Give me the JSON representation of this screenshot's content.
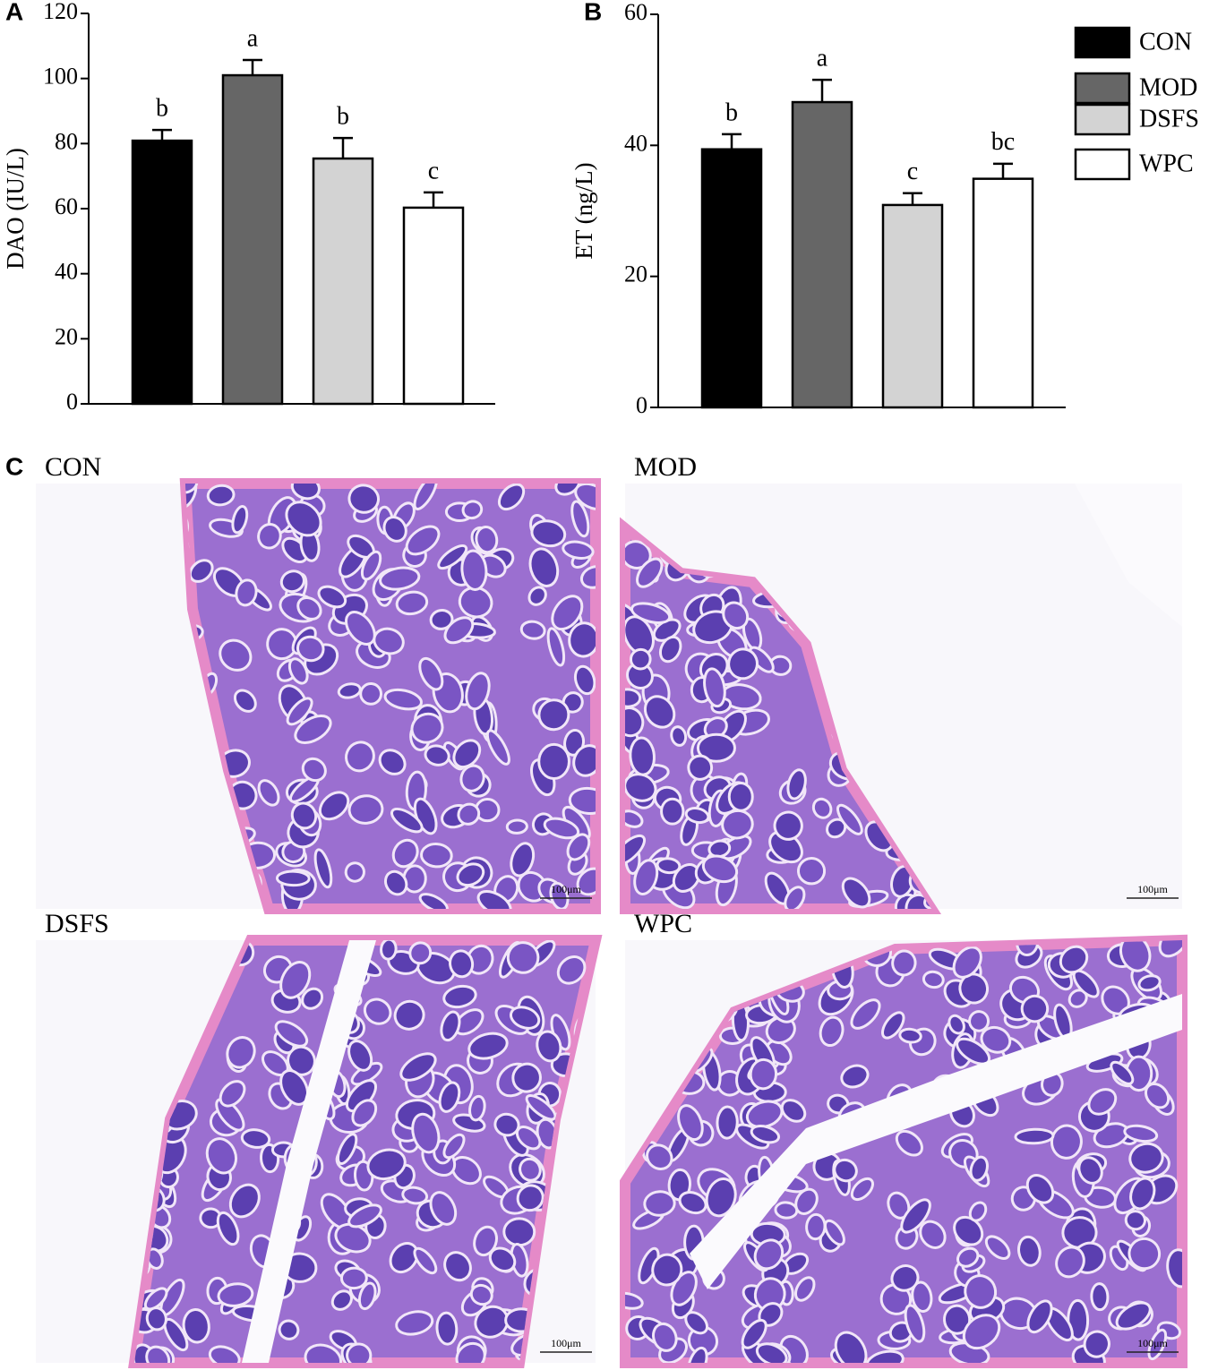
{
  "chart_data": [
    {
      "type": "bar",
      "panel_label": "A",
      "y_label": "DAO (IU/L)",
      "categories": [
        null,
        null,
        null,
        null
      ],
      "values": [
        80.9,
        101,
        75.4,
        60.3
      ],
      "errors": [
        3.3,
        4.7,
        6.3,
        4.7
      ],
      "annotations": [
        "b",
        "a",
        "b",
        "c"
      ],
      "colors": [
        "#000000",
        "#666666",
        "#d3d3d3",
        "#ffffff"
      ],
      "ylim": [
        0,
        120
      ],
      "yticks": [
        0,
        20,
        40,
        60,
        80,
        100,
        120
      ]
    },
    {
      "type": "bar",
      "panel_label": "B",
      "y_label": "ET (ng/L)",
      "categories": [
        "CON",
        "MOD",
        "DSFS",
        "WPC"
      ],
      "values": [
        39.4,
        46.6,
        30.9,
        34.9
      ],
      "errors": [
        2.3,
        3.4,
        1.8,
        2.3
      ],
      "annotations": [
        "b",
        "a",
        "c",
        "bc"
      ],
      "colors": [
        "#000000",
        "#666666",
        "#d3d3d3",
        "#ffffff"
      ],
      "ylim": [
        0,
        60
      ],
      "yticks": [
        0,
        20,
        40,
        60
      ],
      "legend": "top-right"
    }
  ],
  "histology": {
    "panel_label": "C",
    "images": [
      {
        "label": "CON",
        "scale_bar": "100μm"
      },
      {
        "label": "MOD",
        "scale_bar": "100μm"
      },
      {
        "label": "DSFS",
        "scale_bar": "100μm"
      },
      {
        "label": "WPC",
        "scale_bar": "100μm"
      }
    ]
  }
}
